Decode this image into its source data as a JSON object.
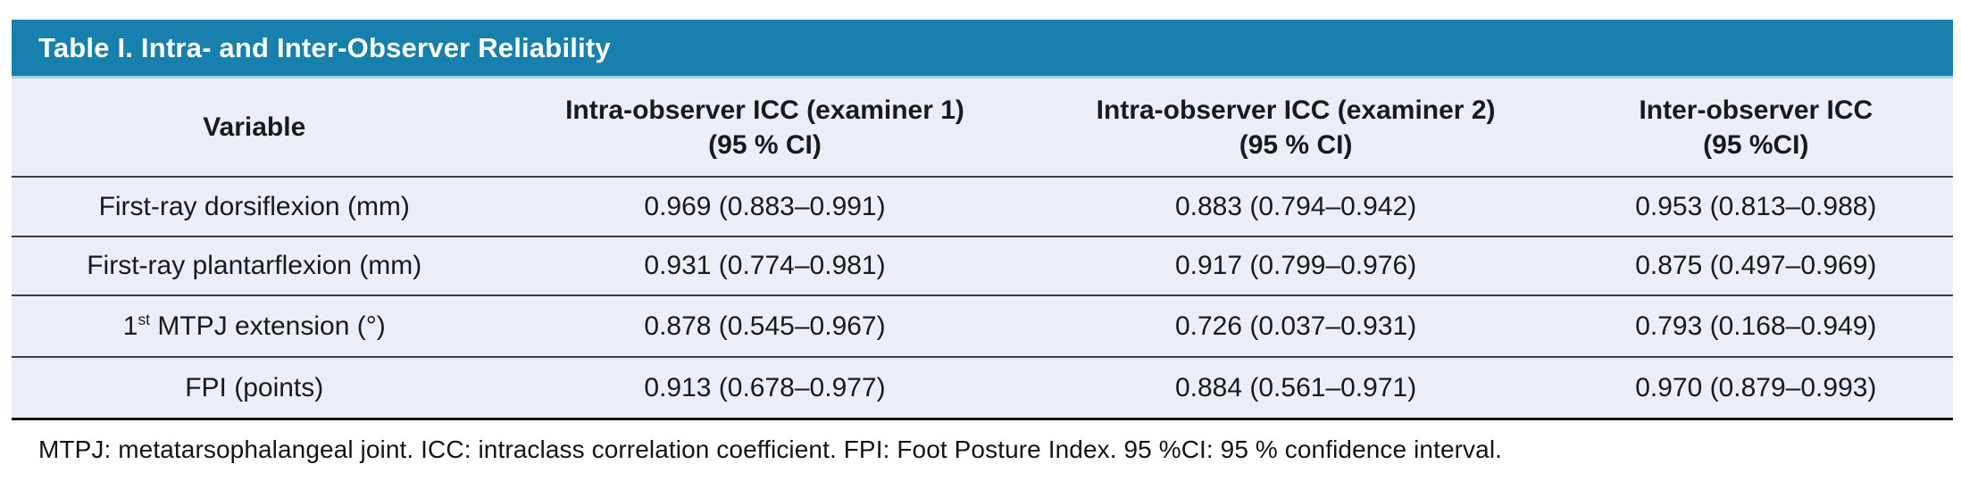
{
  "table": {
    "title": "Table I. Intra- and Inter-Observer Reliability",
    "columns": [
      {
        "label": "Variable",
        "sub": ""
      },
      {
        "label": "Intra-observer ICC (examiner 1)",
        "sub": "(95 % CI)"
      },
      {
        "label": "Intra-observer ICC (examiner 2)",
        "sub": "(95 % CI)"
      },
      {
        "label": "Inter-observer ICC",
        "sub": "(95 %CI)"
      }
    ],
    "rows": [
      {
        "variable": "First-ray dorsiflexion (mm)",
        "variable_sup": "",
        "variable_rest": "",
        "icc_examiner1": "0.969 (0.883–0.991)",
        "icc_examiner2": "0.883 (0.794–0.942)",
        "icc_inter": "0.953 (0.813–0.988)"
      },
      {
        "variable": "First-ray plantarflexion (mm)",
        "variable_sup": "",
        "variable_rest": "",
        "icc_examiner1": "0.931 (0.774–0.981)",
        "icc_examiner2": "0.917 (0.799–0.976)",
        "icc_inter": "0.875 (0.497–0.969)"
      },
      {
        "variable": "1",
        "variable_sup": "st",
        "variable_rest": " MTPJ extension (°)",
        "icc_examiner1": "0.878 (0.545–0.967)",
        "icc_examiner2": "0.726 (0.037–0.931)",
        "icc_inter": "0.793 (0.168–0.949)"
      },
      {
        "variable": "FPI (points)",
        "variable_sup": "",
        "variable_rest": "",
        "icc_examiner1": "0.913 (0.678–0.977)",
        "icc_examiner2": "0.884 (0.561–0.971)",
        "icc_inter": "0.970 (0.879–0.993)"
      }
    ],
    "footnote": "MTPJ: metatarsophalangeal joint. ICC: intraclass correlation coefficient. FPI: Foot Posture Index. 95 %CI: 95 % confidence interval."
  },
  "colors": {
    "header_bar": "#1780ad",
    "header_bar_accent": "#a9cfe2",
    "row_background": "#ebeef6",
    "rule": "#3d3d3d",
    "bottom_rule": "#131313",
    "title_text": "#ffffff",
    "body_text": "#1a1a1a"
  }
}
